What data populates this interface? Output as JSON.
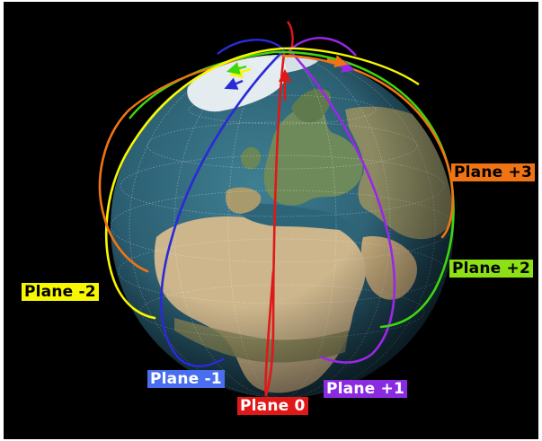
{
  "colors": {
    "background": "#000000",
    "plane_minus_2": "#f7f700",
    "plane_minus_1": "#2a2ad8",
    "plane_0": "#e01818",
    "plane_plus_1": "#9b27e6",
    "plane_plus_2": "#3ed60f",
    "plane_plus_3": "#f07414",
    "ocean": "#2e6478",
    "land": "#c9b48c",
    "ice": "#eef3f6"
  },
  "labels": {
    "plane_minus_2": "Plane -2",
    "plane_minus_1": "Plane -1",
    "plane_0": "Plane 0",
    "plane_plus_1": "Plane +1",
    "plane_plus_2": "Plane +2",
    "plane_plus_3": "Plane +3"
  },
  "label_colors": {
    "plane_minus_2": {
      "bg": "#f7f700",
      "fg": "#000000"
    },
    "plane_minus_1": {
      "bg": "#4a6ef0",
      "fg": "#ffffff"
    },
    "plane_0": {
      "bg": "#e01818",
      "fg": "#ffffff"
    },
    "plane_plus_1": {
      "bg": "#8a2be2",
      "fg": "#ffffff"
    },
    "plane_plus_2": {
      "bg": "#8ee016",
      "fg": "#000000"
    },
    "plane_plus_3": {
      "bg": "#f07414",
      "fg": "#000000"
    }
  }
}
